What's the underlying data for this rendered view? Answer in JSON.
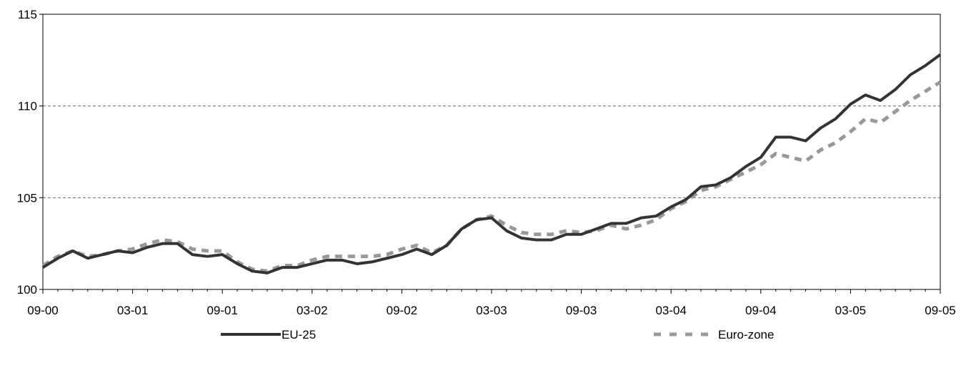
{
  "chart_data": {
    "type": "line",
    "title": "",
    "xlabel": "",
    "ylabel": "",
    "ylim": [
      100,
      115
    ],
    "yticks": [
      100,
      105,
      110,
      115
    ],
    "grid": "dashed horizontal at 105 and 110",
    "legend_placement": "bottom",
    "xtick_labels": [
      "09-00",
      "03-01",
      "09-01",
      "03-02",
      "09-02",
      "03-03",
      "09-03",
      "03-04",
      "09-04",
      "03-05",
      "09-05"
    ],
    "x": [
      "09-00",
      "10-00",
      "11-00",
      "12-00",
      "01-01",
      "02-01",
      "03-01",
      "04-01",
      "05-01",
      "06-01",
      "07-01",
      "08-01",
      "09-01",
      "10-01",
      "11-01",
      "12-01",
      "01-02",
      "02-02",
      "03-02",
      "04-02",
      "05-02",
      "06-02",
      "07-02",
      "08-02",
      "09-02",
      "10-02",
      "11-02",
      "12-02",
      "01-03",
      "02-03",
      "03-03",
      "04-03",
      "05-03",
      "06-03",
      "07-03",
      "08-03",
      "09-03",
      "10-03",
      "11-03",
      "12-03",
      "01-04",
      "02-04",
      "03-04",
      "04-04",
      "05-04",
      "06-04",
      "07-04",
      "08-04",
      "09-04",
      "10-04",
      "11-04",
      "12-04",
      "01-05",
      "02-05",
      "03-05",
      "04-05",
      "05-05",
      "06-05",
      "07-05",
      "08-05",
      "09-05"
    ],
    "series": [
      {
        "name": "EU-25",
        "color": "#333333",
        "style": "solid",
        "values": [
          101.2,
          101.7,
          102.1,
          101.7,
          101.9,
          102.1,
          102.0,
          102.3,
          102.5,
          102.5,
          101.9,
          101.8,
          101.9,
          101.4,
          101.0,
          100.9,
          101.2,
          101.2,
          101.4,
          101.6,
          101.6,
          101.4,
          101.5,
          101.7,
          101.9,
          102.2,
          101.9,
          102.4,
          103.3,
          103.8,
          103.9,
          103.2,
          102.8,
          102.7,
          102.7,
          103.0,
          103.0,
          103.3,
          103.6,
          103.6,
          103.9,
          104.0,
          104.5,
          104.9,
          105.6,
          105.7,
          106.1,
          106.7,
          107.2,
          108.3,
          108.3,
          108.1,
          108.8,
          109.3,
          110.1,
          110.6,
          110.3,
          110.9,
          111.7,
          112.2,
          112.8
        ]
      },
      {
        "name": "Euro-zone",
        "color": "#999999",
        "style": "dashed",
        "values": [
          101.3,
          101.8,
          102.1,
          101.8,
          101.9,
          102.1,
          102.2,
          102.5,
          102.7,
          102.6,
          102.2,
          102.1,
          102.1,
          101.5,
          101.1,
          101.0,
          101.3,
          101.3,
          101.6,
          101.8,
          101.8,
          101.8,
          101.8,
          101.9,
          102.2,
          102.4,
          102.0,
          102.4,
          103.3,
          103.8,
          104.0,
          103.5,
          103.1,
          103.0,
          103.0,
          103.2,
          103.1,
          103.2,
          103.5,
          103.3,
          103.5,
          103.8,
          104.4,
          104.8,
          105.4,
          105.6,
          106.0,
          106.4,
          106.8,
          107.4,
          107.2,
          107.0,
          107.6,
          108.0,
          108.6,
          109.3,
          109.1,
          109.7,
          110.3,
          110.8,
          111.3
        ]
      }
    ]
  }
}
